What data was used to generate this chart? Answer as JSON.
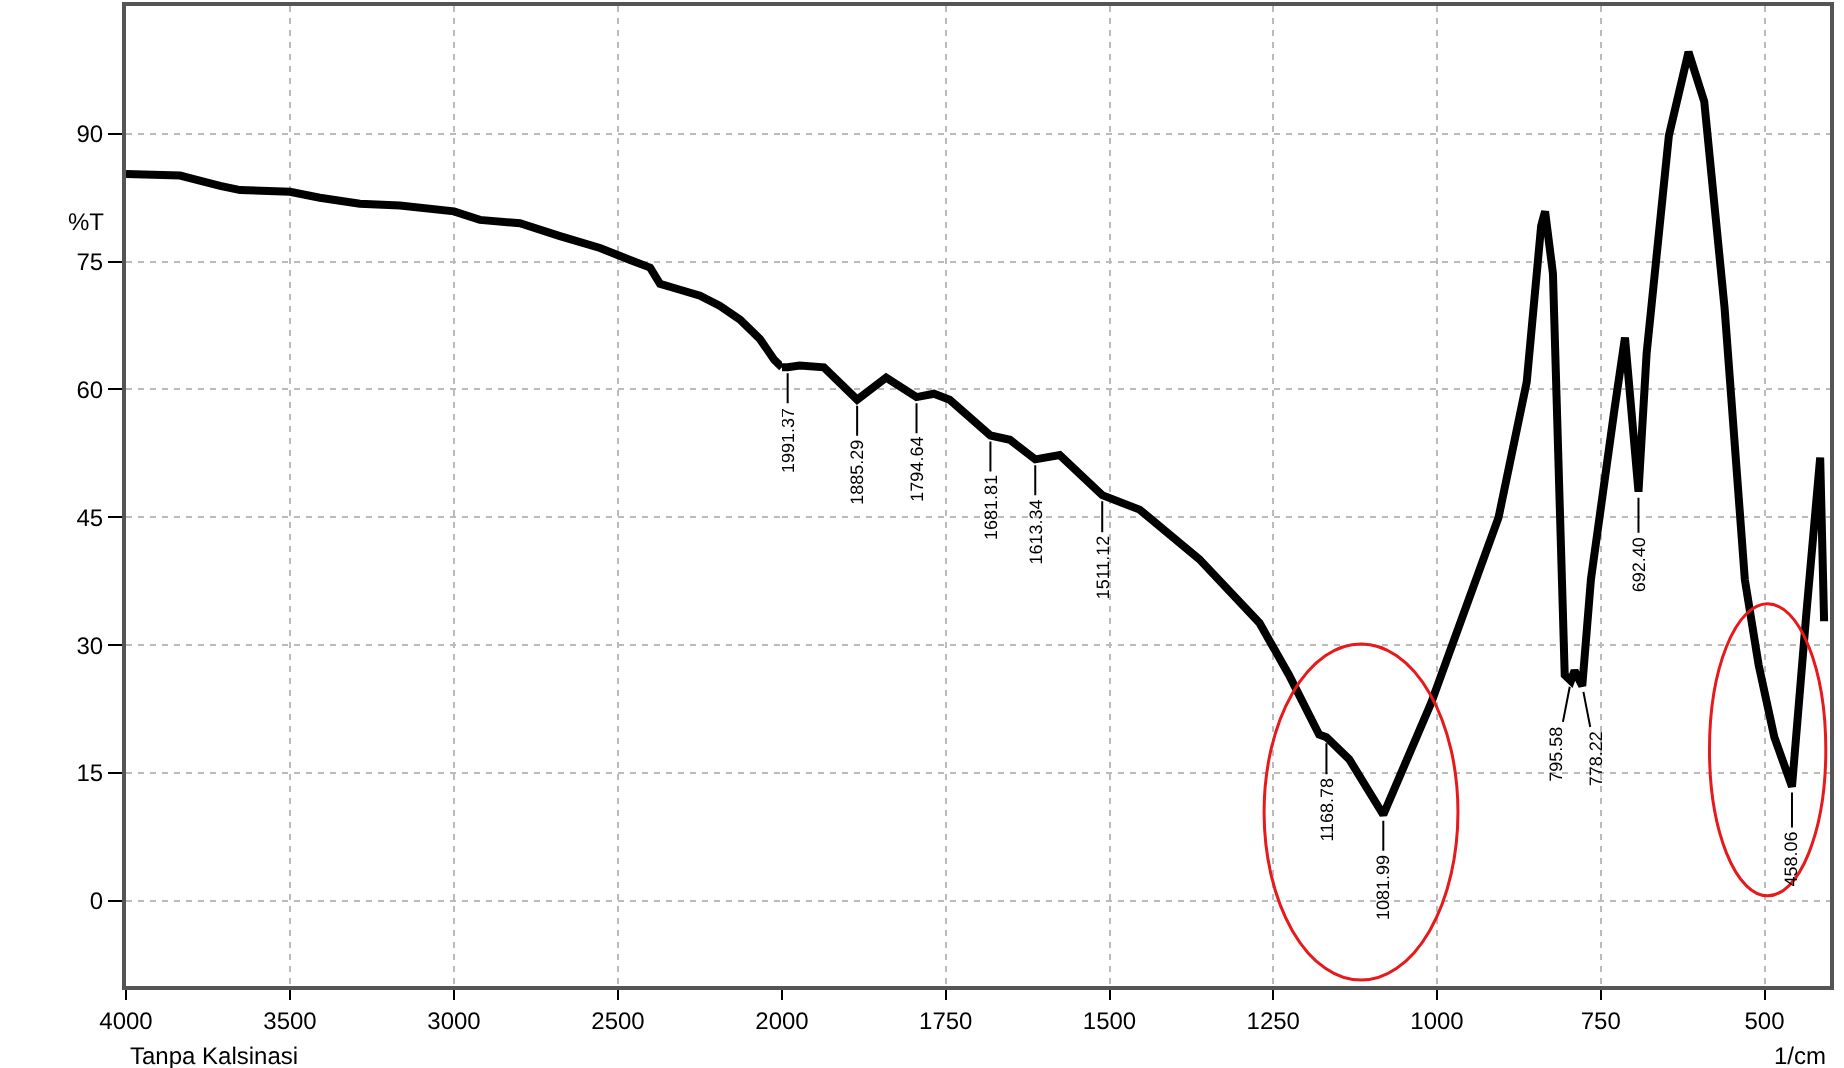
{
  "chart_data": [
    {
      "type": "line",
      "xlim": [
        4000,
        2000
      ],
      "xticks": [
        4000,
        3500,
        3000,
        2500,
        2000
      ],
      "ylim": [
        -10,
        105
      ],
      "yticks": [
        0,
        15,
        30,
        45,
        60,
        75,
        90
      ],
      "ylabel": "%T",
      "grid": true,
      "line_style": "solid",
      "series": [
        {
          "color": "#000000",
          "x": [
            4000,
            3835,
            3805,
            3713,
            3652,
            3500,
            3409,
            3287,
            3165,
            3000,
            2921,
            2799,
            2677,
            2555,
            2463,
            2402,
            2372,
            2311,
            2250,
            2189,
            2128,
            2067,
            2024,
            2000
          ],
          "values": [
            85.3,
            85.1,
            84.8,
            83.9,
            83.4,
            83.2,
            82.5,
            81.8,
            81.6,
            80.9,
            79.9,
            79.5,
            78,
            76.6,
            75.2,
            74.3,
            72.4,
            71.7,
            71,
            69.8,
            68.2,
            65.9,
            63.5,
            62.6
          ]
        }
      ],
      "annotations": [
        "Tanpa Kalsinasi"
      ]
    },
    {
      "type": "line",
      "xlim": [
        2000,
        400
      ],
      "xticks": [
        1750,
        1500,
        1250,
        1000,
        750,
        500
      ],
      "ylim": [
        -10,
        105
      ],
      "yticks": [
        0,
        15,
        30,
        45,
        60,
        75,
        90
      ],
      "tick_labels": "x",
      "xlabel": "1/cm",
      "grid": true,
      "line_style": "solid",
      "series": [
        {
          "color": "#000000",
          "x": [
            2000,
            1991.37,
            1973,
            1936,
            1885.29,
            1841,
            1794.64,
            1768,
            1744,
            1681.81,
            1652,
            1613.34,
            1576,
            1511.12,
            1454,
            1363,
            1271,
            1226,
            1180,
            1168.78,
            1134,
            1081.99,
            1009,
            906,
            863,
            841,
            835,
            823,
            805,
            795.58,
            790,
            778.22,
            765,
            729,
            713,
            692.4,
            680,
            646,
            616,
            592,
            561,
            530,
            509,
            485,
            458.06,
            436,
            415,
            409
          ],
          "values": [
            62.6,
            62.6,
            62.8,
            62.6,
            58.8,
            61.4,
            59.1,
            59.5,
            58.8,
            54.6,
            54.1,
            51.8,
            52.3,
            47.6,
            45.9,
            40.1,
            32.6,
            26.5,
            19.5,
            19.2,
            16.6,
            10.1,
            23.2,
            45,
            60.9,
            79.2,
            80.9,
            73.6,
            26.5,
            25.8,
            27,
            25.2,
            37.7,
            57.7,
            66.1,
            48,
            64.2,
            89.8,
            99.6,
            93.8,
            69.6,
            37.7,
            27.7,
            19.2,
            13.4,
            33.8,
            52,
            32.8
          ]
        }
      ],
      "annotations": [
        {
          "text": "1991.37",
          "x": 1991.37,
          "y": 62.6
        },
        {
          "text": "1885.29",
          "x": 1885.29,
          "y": 58.8
        },
        {
          "text": "1794.64",
          "x": 1794.64,
          "y": 59.1
        },
        {
          "text": "1681.81",
          "x": 1681.81,
          "y": 54.6
        },
        {
          "text": "1613.34",
          "x": 1613.34,
          "y": 51.8
        },
        {
          "text": "1511.12",
          "x": 1511.12,
          "y": 47.6
        },
        {
          "text": "1168.78",
          "x": 1168.78,
          "y": 19.2
        },
        {
          "text": "1081.99",
          "x": 1081.99,
          "y": 10.1
        },
        {
          "text": "795.58",
          "x": 795.58,
          "y": 25.8
        },
        {
          "text": "778.22",
          "x": 778.22,
          "y": 25.2
        },
        {
          "text": "692.40",
          "x": 692.4,
          "y": 48
        },
        {
          "text": "458.06",
          "x": 458.06,
          "y": 13.4
        }
      ]
    }
  ]
}
